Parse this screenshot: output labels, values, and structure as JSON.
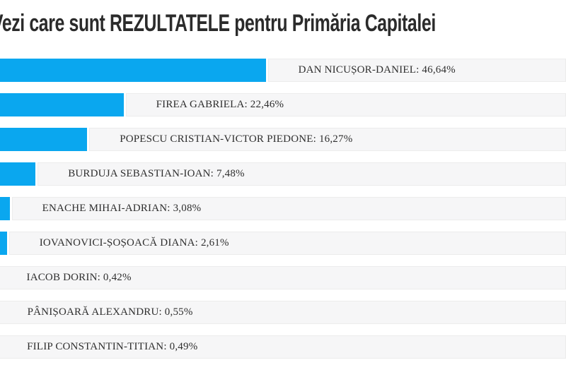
{
  "title": "Vezi care sunt REZULTATELE pentru Primăria Capitalei",
  "chart_data": {
    "type": "bar",
    "orientation": "horizontal",
    "title": "Vezi care sunt REZULTATELE pentru Primăria Capitalei",
    "categories": [
      "DAN NICUȘOR-DANIEL",
      "FIREA GABRIELA",
      "POPESCU CRISTIAN-VICTOR PIEDONE",
      "BURDUJA SEBASTIAN-IOAN",
      "ENACHE MIHAI-ADRIAN",
      "IOVANOVICI-ȘOȘOACĂ DIANA",
      "IACOB DORIN",
      "PÂNIȘOARĂ ALEXANDRU",
      "FILIP CONSTANTIN-TITIAN"
    ],
    "values": [
      46.64,
      22.46,
      16.27,
      7.48,
      3.08,
      2.61,
      0.42,
      0.55,
      0.49
    ],
    "labels": [
      "DAN NICUȘOR-DANIEL: 46,64%",
      "FIREA GABRIELA: 22,46%",
      "POPESCU CRISTIAN-VICTOR PIEDONE: 16,27%",
      "BURDUJA SEBASTIAN-IOAN: 7,48%",
      "ENACHE MIHAI-ADRIAN: 3,08%",
      "IOVANOVICI-ȘOȘOACĂ DIANA: 2,61%",
      "IACOB DORIN: 0,42%",
      "PÂNIȘOARĂ ALEXANDRU: 0,55%",
      "FILIP CONSTANTIN-TITIAN: 0,49%"
    ],
    "value_suffix": "%",
    "xlim": [
      0,
      100
    ],
    "bar_color": "#0aa7ef",
    "track_color": "#f6f6f7",
    "grid": false,
    "legend": "none"
  }
}
